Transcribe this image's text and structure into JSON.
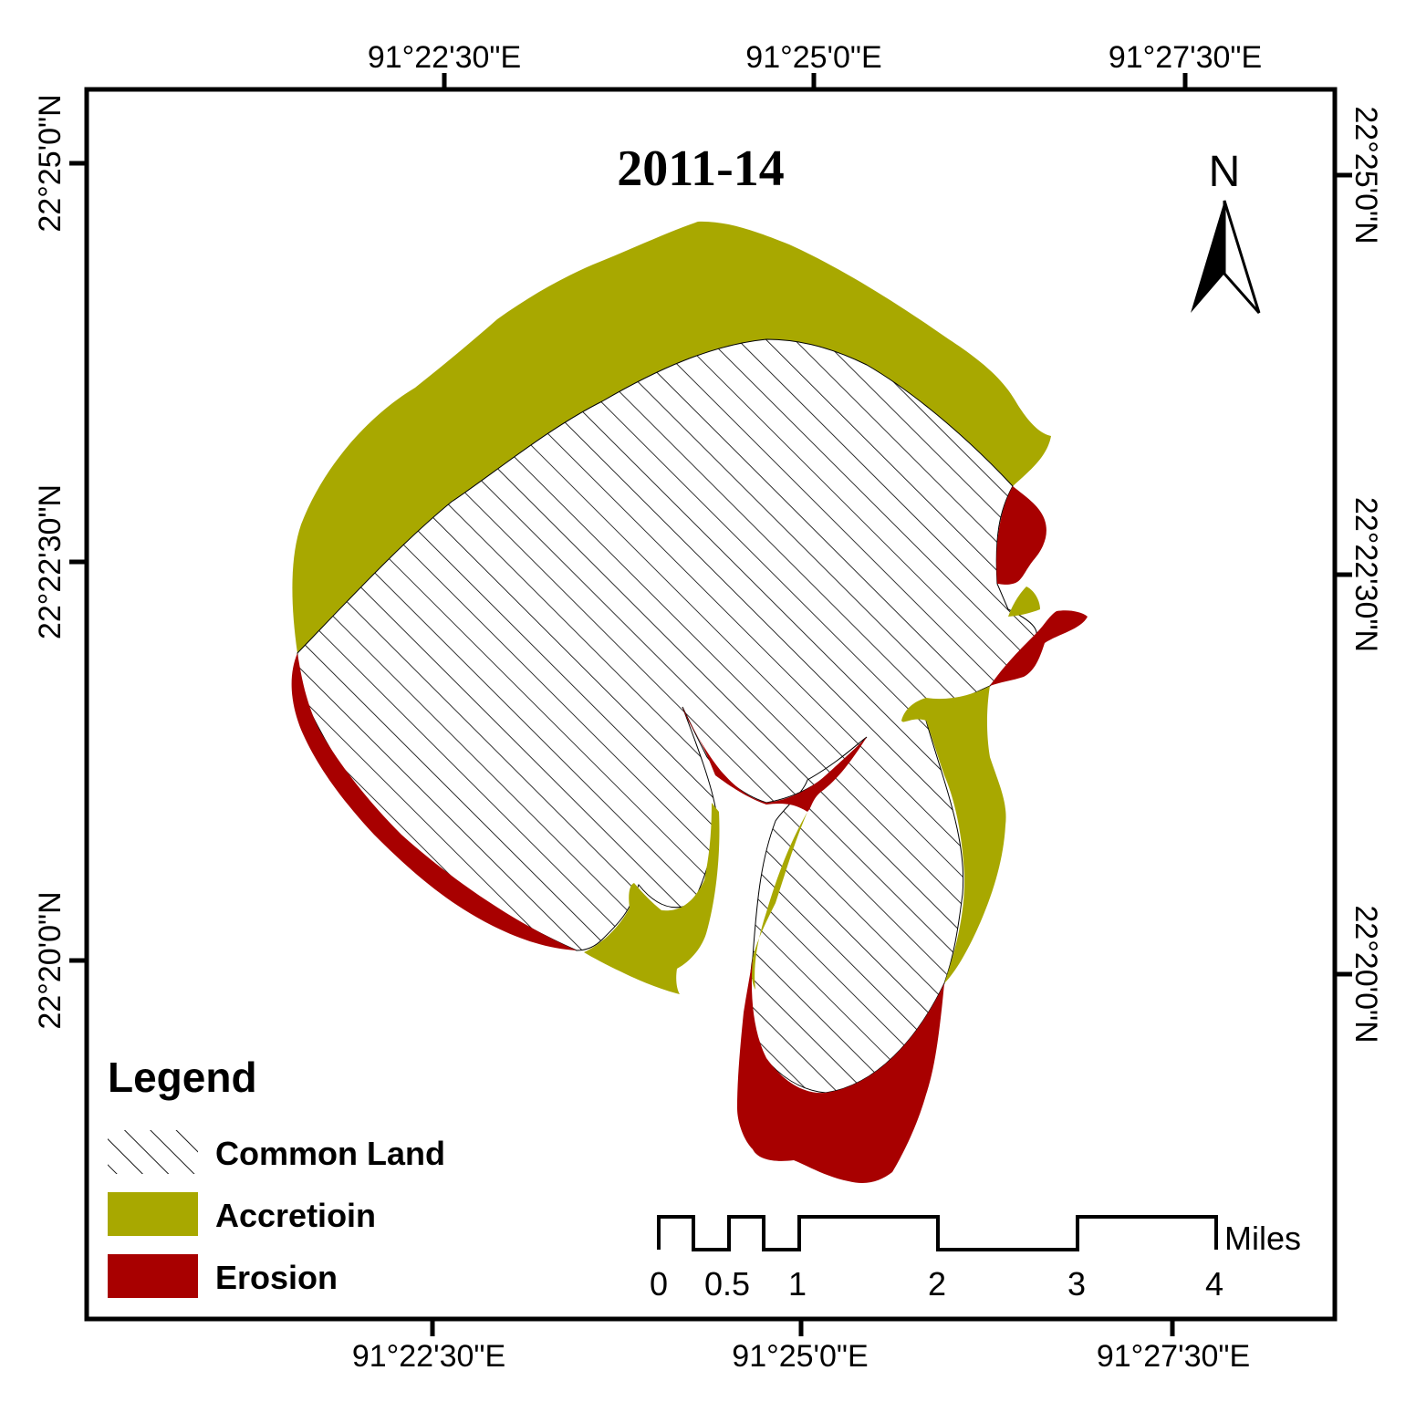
{
  "title": "2011-14",
  "coords": {
    "top": [
      "91°22'30\"E",
      "91°25'0\"E",
      "91°27'30\"E"
    ],
    "bottom": [
      "91°22'30\"E",
      "91°25'0\"E",
      "91°27'30\"E"
    ],
    "left": [
      "22°25'0\"N",
      "22°22'30\"N",
      "22°20'0\"N"
    ],
    "right": [
      "22°25'0\"N",
      "22°22'30\"N",
      "22°20'0\"N"
    ]
  },
  "north_arrow": {
    "label": "N"
  },
  "legend": {
    "heading": "Legend",
    "items": [
      {
        "label": "Common Land",
        "pattern": "hatch"
      },
      {
        "label": "Accretioin",
        "color": "#a8a800"
      },
      {
        "label": "Erosion",
        "color": "#a80000"
      }
    ]
  },
  "scale_bar": {
    "unit": "Miles",
    "ticks": [
      "0",
      "0.5",
      "1",
      "2",
      "3",
      "4"
    ]
  },
  "colors": {
    "accretion": "#a8a800",
    "erosion": "#a80000",
    "frame": "#000000"
  }
}
